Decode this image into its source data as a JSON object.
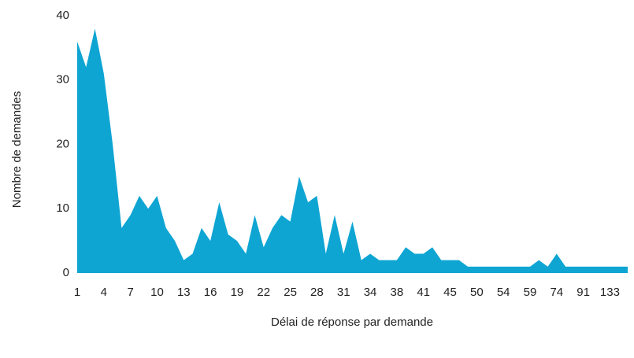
{
  "chart_data": {
    "type": "area",
    "x_label": "Délai de réponse par demande",
    "y_label": "Nombre de demandes",
    "categories": [
      "1",
      null,
      null,
      "4",
      null,
      null,
      "7",
      null,
      null,
      "10",
      null,
      null,
      "13",
      null,
      null,
      "16",
      null,
      null,
      "19",
      null,
      null,
      "22",
      null,
      null,
      "25",
      null,
      null,
      "28",
      null,
      null,
      "31",
      null,
      null,
      "34",
      null,
      null,
      "38",
      null,
      null,
      "41",
      null,
      null,
      "45",
      null,
      null,
      "50",
      null,
      null,
      "54",
      null,
      null,
      "59",
      null,
      null,
      "74",
      null,
      null,
      "91",
      null,
      null,
      "133",
      null,
      null
    ],
    "values": [
      36,
      32,
      38,
      31,
      20,
      7,
      9,
      12,
      10,
      12,
      7,
      5,
      2,
      3,
      7,
      5,
      11,
      6,
      5,
      3,
      9,
      4,
      7,
      9,
      8,
      15,
      11,
      12,
      3,
      9,
      3,
      8,
      2,
      3,
      2,
      2,
      2,
      4,
      3,
      3,
      4,
      2,
      2,
      2,
      1,
      1,
      1,
      1,
      1,
      1,
      1,
      1,
      2,
      1,
      3,
      1,
      1,
      1,
      1,
      1,
      1,
      1,
      1
    ],
    "color": "#0ea5d3",
    "ylim": [
      0,
      40
    ],
    "yticks": [
      0,
      10,
      20,
      30,
      40
    ],
    "grid": false
  }
}
